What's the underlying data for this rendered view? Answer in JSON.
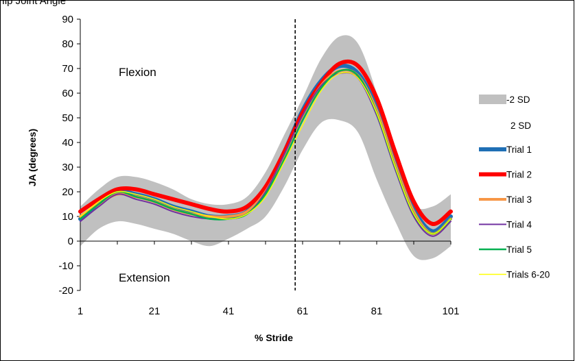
{
  "header": {
    "caption": "Hip Joint Angle"
  },
  "colors": {
    "band": "#c0c0c0",
    "trial1": "#1f6fb5",
    "trial2": "#ff0000",
    "trial3": "#f79646",
    "trial4": "#7030a0",
    "trial5": "#00b050",
    "trials6_20": "#ffff00"
  },
  "chart_data": {
    "type": "line",
    "xlabel": "% Stride",
    "ylabel": "JA (degrees)",
    "xlim": [
      1,
      101
    ],
    "ylim": [
      -20,
      90
    ],
    "x_ticks": [
      "1",
      "21",
      "41",
      "61",
      "81",
      "101"
    ],
    "y_ticks": [
      "-20",
      "-10",
      "0",
      "10",
      "20",
      "30",
      "40",
      "50",
      "60",
      "70",
      "80",
      "90"
    ],
    "grid": false,
    "legend_position": "right",
    "annotations": {
      "upper": "Flexion",
      "lower": "Extension"
    },
    "vertical_marker_x": 59,
    "band": {
      "lower_name": "-2 SD",
      "upper_name": "2 SD",
      "x": [
        1,
        6,
        11,
        16,
        21,
        26,
        31,
        36,
        41,
        46,
        51,
        56,
        61,
        66,
        71,
        76,
        81,
        86,
        91,
        96,
        101
      ],
      "lower": [
        -2,
        5,
        8,
        7,
        5,
        3,
        0,
        -2,
        1,
        5,
        10,
        22,
        37,
        48,
        49,
        44,
        25,
        8,
        -6,
        -7,
        -2
      ],
      "upper": [
        14,
        21,
        26,
        26,
        24,
        21,
        17,
        15,
        15,
        18,
        28,
        43,
        58,
        74,
        83,
        80,
        60,
        34,
        15,
        14,
        19
      ]
    },
    "x": [
      1,
      6,
      11,
      16,
      21,
      26,
      31,
      36,
      41,
      46,
      51,
      56,
      61,
      66,
      71,
      76,
      81,
      86,
      91,
      96,
      101
    ],
    "series": [
      {
        "name": "Trial 1",
        "color_key": "trial1",
        "width": 6,
        "values": [
          9,
          15,
          20,
          19,
          17,
          14,
          12,
          10,
          10,
          12,
          21,
          36,
          53,
          65,
          71,
          68,
          54,
          32,
          13,
          4,
          10
        ]
      },
      {
        "name": "Trial 2",
        "color_key": "trial2",
        "width": 6,
        "values": [
          12,
          17,
          21,
          21,
          19,
          17,
          15,
          13,
          12,
          14,
          22,
          36,
          52,
          64,
          72,
          71,
          58,
          36,
          16,
          7,
          12
        ]
      },
      {
        "name": "Trial 3",
        "color_key": "trial3",
        "width": 4,
        "values": [
          10,
          15,
          19,
          18,
          16,
          13,
          11,
          10,
          10,
          12,
          20,
          34,
          50,
          63,
          69,
          67,
          53,
          31,
          12,
          3,
          9
        ]
      },
      {
        "name": "Trial 4",
        "color_key": "trial4",
        "width": 2,
        "values": [
          8,
          14,
          19,
          17,
          15,
          12,
          10,
          9,
          9,
          11,
          20,
          35,
          51,
          63,
          68,
          66,
          51,
          29,
          10,
          2,
          8
        ]
      },
      {
        "name": "Trial 5",
        "color_key": "trial5",
        "width": 2.5,
        "values": [
          9,
          15,
          20,
          18,
          16,
          13,
          11,
          9,
          9,
          11,
          19,
          33,
          49,
          62,
          69,
          67,
          52,
          30,
          11,
          3,
          9
        ]
      },
      {
        "name": "Trials 6-20",
        "color_key": "trials6_20",
        "width": 1.5,
        "values": [
          10,
          16,
          20,
          19,
          17,
          14,
          12,
          10,
          9,
          11,
          18,
          32,
          47,
          61,
          68,
          66,
          52,
          30,
          11,
          3,
          9
        ]
      }
    ]
  }
}
